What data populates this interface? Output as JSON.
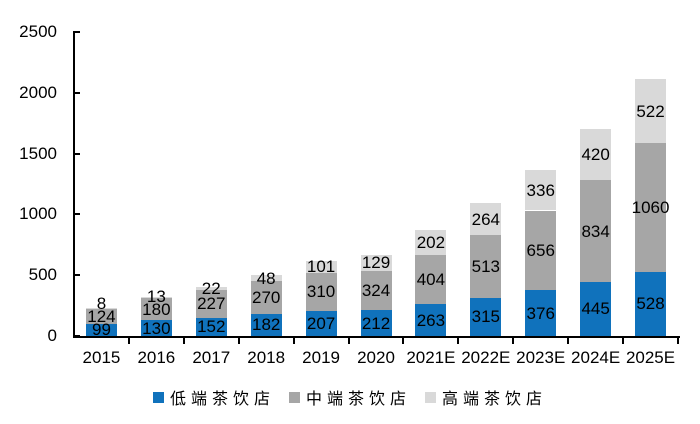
{
  "chart_data": {
    "type": "bar",
    "stacked": true,
    "title": "",
    "categories": [
      "2015",
      "2016",
      "2017",
      "2018",
      "2019",
      "2020",
      "2021E",
      "2022E",
      "2023E",
      "2024E",
      "2025E"
    ],
    "series": [
      {
        "name": "低端茶饮店",
        "color": "#1072BC",
        "values": [
          99,
          130,
          152,
          182,
          207,
          212,
          263,
          315,
          376,
          445,
          528
        ]
      },
      {
        "name": "中端茶饮店",
        "color": "#A6A6A6",
        "values": [
          124,
          180,
          227,
          270,
          310,
          324,
          404,
          513,
          656,
          834,
          1060
        ]
      },
      {
        "name": "高端茶饮店",
        "color": "#D9D9D9",
        "values": [
          8,
          13,
          22,
          48,
          101,
          129,
          202,
          264,
          336,
          420,
          522
        ]
      }
    ],
    "xlabel": "",
    "ylabel": "",
    "ylim": [
      0,
      2500
    ],
    "y_ticks": [
      0,
      500,
      1000,
      1500,
      2000,
      2500
    ],
    "grid": false,
    "data_labels": "center",
    "legend_position": "bottom",
    "axis_color": "#000000",
    "text_color": "#000000",
    "background_color": "#FFFFFF"
  }
}
